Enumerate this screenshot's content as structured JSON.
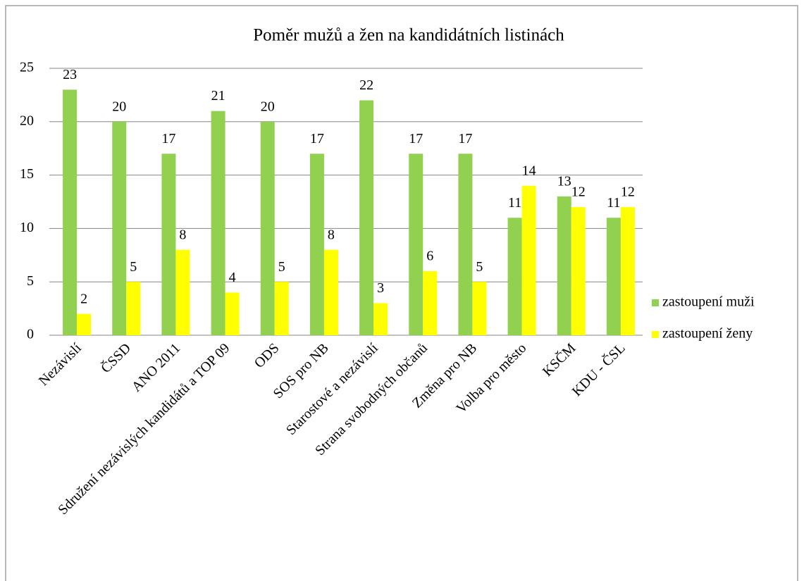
{
  "chart_data": {
    "type": "bar",
    "title": "Poměr mužů a žen na kandidátních listinách",
    "categories": [
      "Nezávislí",
      "ČSSD",
      "ANO 2011",
      "Sdružení nezávislých kandidátů a TOP 09",
      "ODS",
      "SOS pro NB",
      "Starostové a nezávislí",
      "Strana svobodných občanů",
      "Změna pro NB",
      "Volba pro město",
      "KSČM",
      "KDU - ČSL"
    ],
    "series": [
      {
        "name": "zastoupení muži",
        "color": "#92d050",
        "values": [
          23,
          20,
          17,
          21,
          20,
          17,
          22,
          17,
          17,
          11,
          13,
          11
        ]
      },
      {
        "name": "zastoupení ženy",
        "color": "#ffff00",
        "values": [
          2,
          5,
          8,
          4,
          5,
          8,
          3,
          6,
          5,
          14,
          12,
          12
        ]
      }
    ],
    "ylim": [
      0,
      25
    ],
    "yticks": [
      0,
      5,
      10,
      15,
      20,
      25
    ],
    "grid": true,
    "legend": "right"
  }
}
